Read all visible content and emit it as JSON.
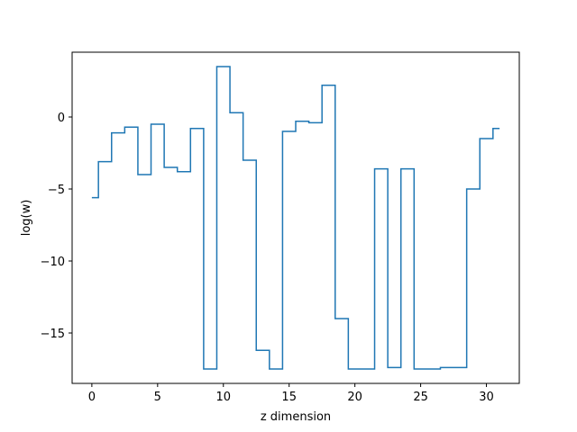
{
  "chart_data": {
    "type": "line",
    "style": "step-mid",
    "title": "",
    "xlabel": "z dimension",
    "ylabel": "log(w)",
    "xlim": [
      -1.5,
      32.5
    ],
    "ylim": [
      -18.5,
      4.5
    ],
    "xticks": [
      0,
      5,
      10,
      15,
      20,
      25,
      30
    ],
    "yticks": [
      0,
      -5,
      -10,
      -15
    ],
    "grid": false,
    "legend": "none",
    "series_color": "#1f77b4",
    "series": [
      {
        "x": [
          0,
          1,
          2,
          3,
          4,
          5,
          6,
          7,
          8,
          9,
          10,
          11,
          12,
          13,
          14,
          15,
          16,
          17,
          18,
          19,
          20,
          21,
          22,
          23,
          24,
          25,
          26,
          27,
          28,
          29,
          30,
          31
        ],
        "values": [
          -5.6,
          -3.1,
          -1.1,
          -0.7,
          -4.0,
          -0.5,
          -3.5,
          -3.8,
          -0.8,
          -17.5,
          3.5,
          0.3,
          -3.0,
          -16.2,
          -17.5,
          -1.0,
          -0.3,
          -0.4,
          2.2,
          -14.0,
          -17.5,
          -17.5,
          -3.6,
          -17.4,
          -3.6,
          -17.5,
          -17.5,
          -17.4,
          -17.4,
          -5.0,
          -1.5,
          -0.8
        ]
      }
    ]
  }
}
